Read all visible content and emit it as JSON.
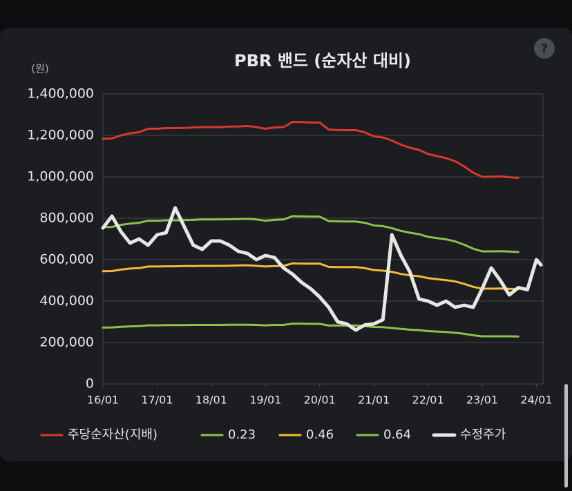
{
  "chart_data": {
    "type": "line",
    "title": "PBR 밴드 (순자산 대비)",
    "y_label": "(원)",
    "x": [
      "16/01",
      "16/03",
      "16/05",
      "16/07",
      "16/09",
      "16/11",
      "17/01",
      "17/03",
      "17/05",
      "17/07",
      "17/09",
      "17/11",
      "18/01",
      "18/03",
      "18/05",
      "18/07",
      "18/09",
      "18/11",
      "19/01",
      "19/03",
      "19/05",
      "19/07",
      "19/09",
      "19/11",
      "20/01",
      "20/03",
      "20/05",
      "20/07",
      "20/09",
      "20/11",
      "21/01",
      "21/03",
      "21/05",
      "21/07",
      "21/09",
      "21/11",
      "22/01",
      "22/03",
      "22/05",
      "22/07",
      "22/09",
      "22/11",
      "23/01",
      "23/03",
      "23/05",
      "23/07",
      "23/09",
      "23/11",
      "24/01",
      "24/02"
    ],
    "xlim": [
      "16/01",
      "24/02"
    ],
    "xticks": [
      "16/01",
      "17/01",
      "18/01",
      "19/01",
      "20/01",
      "21/01",
      "22/01",
      "23/01",
      "24/01"
    ],
    "ylim": [
      0,
      1400000
    ],
    "yticks": [
      0,
      {
        "value": 200000,
        "label": "200,000"
      },
      {
        "value": 400000,
        "label": "400,000"
      },
      {
        "value": 600000,
        "label": "600,000"
      },
      {
        "value": 800000,
        "label": "800,000"
      },
      {
        "value": 1000000,
        "label": "1,000,000"
      },
      {
        "value": 1200000,
        "label": "1,200,000"
      },
      {
        "value": 1400000,
        "label": "1,400,000"
      }
    ],
    "grid": true,
    "legend": "bottom",
    "series": [
      {
        "name": "주당순자산(지배)",
        "color": "#d8392b",
        "values": [
          1183000,
          1185000,
          1200000,
          1210000,
          1215000,
          1232000,
          1232000,
          1235000,
          1235000,
          1236000,
          1238000,
          1240000,
          1240000,
          1240000,
          1242000,
          1243000,
          1245000,
          1240000,
          1232000,
          1238000,
          1240000,
          1265000,
          1264000,
          1262000,
          1262000,
          1228000,
          1226000,
          1225000,
          1225000,
          1215000,
          1195000,
          1190000,
          1175000,
          1155000,
          1140000,
          1130000,
          1110000,
          1100000,
          1090000,
          1075000,
          1050000,
          1020000,
          1000000,
          1000000,
          1002000,
          998000,
          995000,
          null,
          null,
          null
        ]
      },
      {
        "name": "0.23",
        "color": "#8bc34a",
        "values": [
          272000,
          273000,
          276000,
          278000,
          279000,
          283000,
          283000,
          284000,
          284000,
          284000,
          285000,
          285000,
          285000,
          285000,
          286000,
          286000,
          286000,
          285000,
          283000,
          285000,
          285000,
          291000,
          291000,
          290000,
          290000,
          282000,
          282000,
          282000,
          282000,
          279000,
          275000,
          274000,
          270000,
          266000,
          262000,
          260000,
          255000,
          253000,
          251000,
          247000,
          242000,
          235000,
          230000,
          230000,
          230000,
          230000,
          229000,
          null,
          null,
          null
        ]
      },
      {
        "name": "0.46",
        "color": "#f5b935",
        "values": [
          544000,
          545000,
          552000,
          557000,
          559000,
          567000,
          567000,
          568000,
          568000,
          569000,
          569000,
          570000,
          570000,
          570000,
          571000,
          572000,
          573000,
          570000,
          567000,
          569000,
          570000,
          582000,
          581000,
          581000,
          581000,
          565000,
          564000,
          564000,
          564000,
          559000,
          550000,
          547000,
          541000,
          531000,
          524000,
          520000,
          511000,
          506000,
          501000,
          495000,
          483000,
          469000,
          460000,
          460000,
          461000,
          459000,
          458000,
          null,
          null,
          null
        ]
      },
      {
        "name": "0.64",
        "color": "#8bc34a",
        "values": [
          757000,
          758000,
          768000,
          774000,
          778000,
          788000,
          788000,
          790000,
          790000,
          791000,
          792000,
          794000,
          794000,
          794000,
          795000,
          796000,
          797000,
          794000,
          788000,
          792000,
          794000,
          810000,
          809000,
          808000,
          808000,
          786000,
          785000,
          784000,
          784000,
          778000,
          765000,
          762000,
          752000,
          739000,
          730000,
          723000,
          710000,
          704000,
          698000,
          688000,
          672000,
          653000,
          640000,
          640000,
          641000,
          639000,
          637000,
          null,
          null,
          null
        ]
      },
      {
        "name": "수정주가",
        "color": "#e6e6e6",
        "values": [
          753000,
          810000,
          735000,
          680000,
          700000,
          670000,
          720000,
          730000,
          850000,
          760000,
          670000,
          650000,
          690000,
          690000,
          670000,
          640000,
          630000,
          600000,
          620000,
          610000,
          560000,
          530000,
          490000,
          460000,
          420000,
          370000,
          300000,
          290000,
          260000,
          285000,
          290000,
          310000,
          720000,
          620000,
          540000,
          410000,
          400000,
          380000,
          400000,
          370000,
          380000,
          370000,
          460000,
          560000,
          500000,
          430000,
          465000,
          455000,
          600000,
          575000
        ]
      }
    ]
  }
}
